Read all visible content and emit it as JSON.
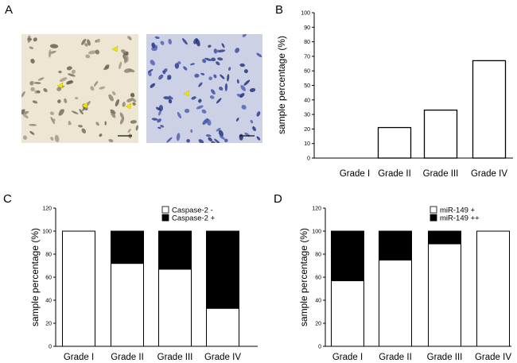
{
  "panels": {
    "a": {
      "letter": "A"
    },
    "b": {
      "letter": "B"
    },
    "c": {
      "letter": "C"
    },
    "d": {
      "letter": "D"
    }
  },
  "micrographs": {
    "left": {
      "stain": "brown",
      "arrow_count": 4
    },
    "right": {
      "stain": "blue",
      "arrow_count": 1
    }
  },
  "chart_data": [
    {
      "id": "b",
      "type": "bar",
      "title": "",
      "xlabel": "",
      "ylabel": "sample percentage (%)",
      "categories": [
        "Grade I",
        "Grade II",
        "Grade III",
        "Grade IV"
      ],
      "values": [
        0,
        21,
        33,
        67
      ],
      "ylim": [
        0,
        100
      ],
      "yticks": [
        0,
        10,
        20,
        30,
        40,
        50,
        60,
        70,
        80,
        90,
        100
      ],
      "fill": "#ffffff",
      "stroke": "#000000"
    },
    {
      "id": "c",
      "type": "bar",
      "stacked": true,
      "title": "",
      "xlabel": "",
      "ylabel": "sample percentage (%)",
      "categories": [
        "Grade I",
        "Grade II",
        "Grade III",
        "Grade IV"
      ],
      "series": [
        {
          "name": "Caspase-2  -",
          "color": "#ffffff",
          "values": [
            100,
            72,
            67,
            33
          ]
        },
        {
          "name": "Caspase-2 +",
          "color": "#000000",
          "values": [
            0,
            28,
            33,
            67
          ]
        }
      ],
      "ylim": [
        0,
        120
      ],
      "yticks": [
        0,
        20,
        40,
        60,
        80,
        100,
        120
      ],
      "legend": "top-right"
    },
    {
      "id": "d",
      "type": "bar",
      "stacked": true,
      "title": "",
      "xlabel": "",
      "ylabel": "sample percentage (%)",
      "categories": [
        "Grade I",
        "Grade II",
        "Grade III",
        "Grade IV"
      ],
      "series": [
        {
          "name": "miR-149 +",
          "color": "#ffffff",
          "values": [
            57,
            75,
            89,
            100
          ]
        },
        {
          "name": "miR-149 ++",
          "color": "#000000",
          "values": [
            43,
            25,
            11,
            0
          ]
        }
      ],
      "ylim": [
        0,
        120
      ],
      "yticks": [
        0,
        20,
        40,
        60,
        80,
        100,
        120
      ],
      "legend": "top-right"
    }
  ]
}
